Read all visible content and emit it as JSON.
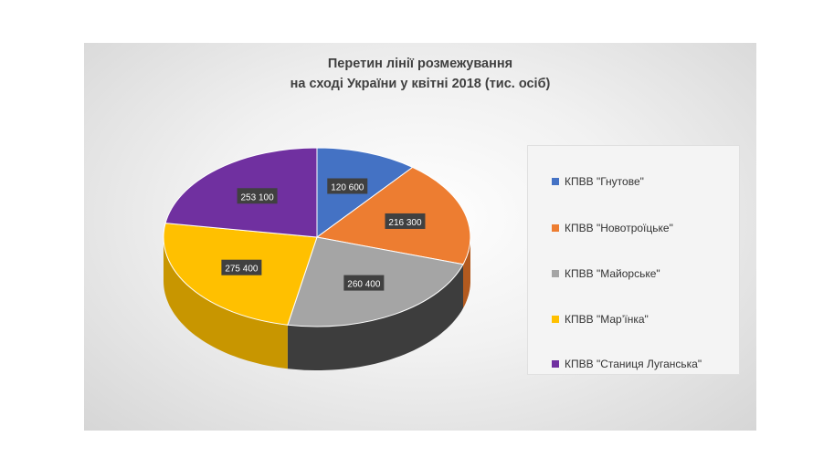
{
  "chart_data": {
    "type": "pie",
    "title_lines": [
      "Перетин лінії розмежування",
      "на сході України у квітні 2018 (тис. осіб)"
    ],
    "slices": [
      {
        "label": "КПВВ \"Гнутове\"",
        "value": 120600,
        "value_label": "120 600",
        "color": "#4472c4",
        "side": "#2f5597"
      },
      {
        "label": "КПВВ \"Новотроїцьке\"",
        "value": 216300,
        "value_label": "216 300",
        "color": "#ed7d31",
        "side": "#b35a1f"
      },
      {
        "label": "КПВВ \"Майорське\"",
        "value": 260400,
        "value_label": "260 400",
        "color": "#a5a5a5",
        "side": "#3d3d3d"
      },
      {
        "label": "КПВВ \"Мар’їнка\"",
        "value": 275400,
        "value_label": "275 400",
        "color": "#ffc000",
        "side": "#c89600"
      },
      {
        "label": "КПВВ \"Станиця Луганська\"",
        "value": 253100,
        "value_label": "253 100",
        "color": "#7030a0",
        "side": "#4d1f70"
      }
    ],
    "legend_position": "right"
  }
}
